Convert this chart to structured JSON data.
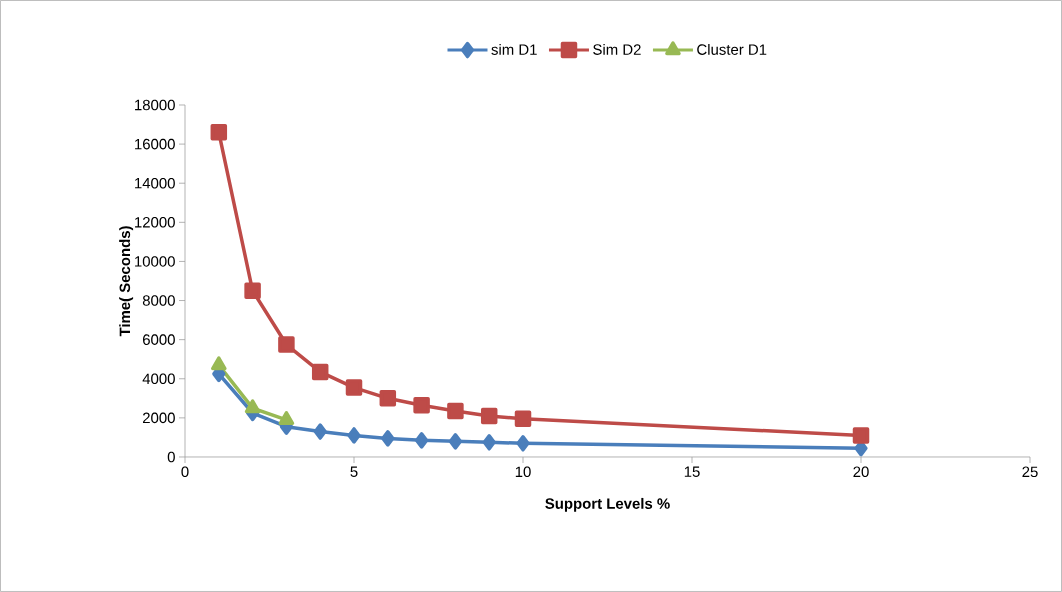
{
  "chart_data": {
    "type": "line",
    "xlabel": "Support Levels %",
    "ylabel": "Time( Seconds)",
    "xlim": [
      0,
      25
    ],
    "xticks": [
      0,
      5,
      10,
      15,
      20,
      25
    ],
    "ylim": [
      0,
      18000
    ],
    "yticks": [
      0,
      2000,
      4000,
      6000,
      8000,
      10000,
      12000,
      14000,
      16000,
      18000
    ],
    "grid": false,
    "legend": "top",
    "line_style": "solid",
    "series": [
      {
        "name": "sim D1",
        "color": "#4a7ebb",
        "marker": "diamond",
        "x": [
          1,
          2,
          3,
          4,
          5,
          6,
          7,
          8,
          9,
          10,
          20
        ],
        "values": [
          4250,
          2250,
          1550,
          1300,
          1100,
          950,
          850,
          800,
          750,
          700,
          450
        ]
      },
      {
        "name": "Sim D2",
        "color": "#be4b48",
        "marker": "square",
        "x": [
          1,
          2,
          3,
          4,
          5,
          6,
          7,
          8,
          9,
          10,
          20
        ],
        "values": [
          16600,
          8500,
          5750,
          4350,
          3550,
          3000,
          2650,
          2350,
          2100,
          1950,
          1100
        ]
      },
      {
        "name": "Cluster D1",
        "color": "#98b954",
        "marker": "triangle",
        "x": [
          1,
          2,
          3
        ],
        "values": [
          4700,
          2500,
          1900
        ]
      }
    ]
  }
}
